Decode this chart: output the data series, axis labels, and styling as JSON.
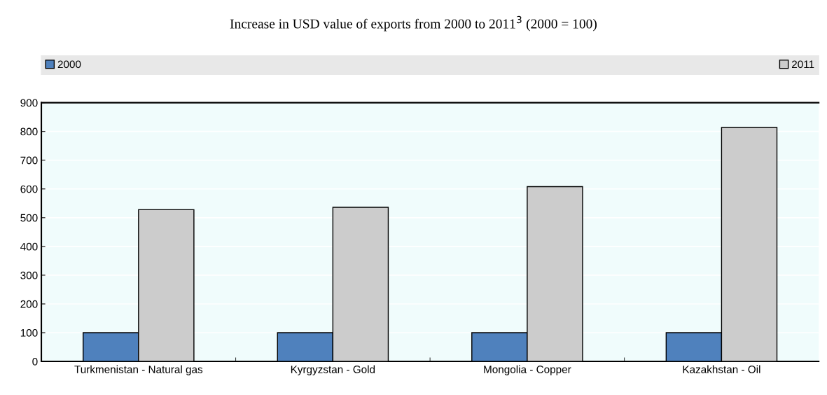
{
  "chart_data": {
    "type": "bar",
    "title": "Increase in USD value of exports from 2000 to 2011$^{3}$ (2000 = 100)",
    "categories": [
      "Turkmenistan - Natural gas",
      "Kyrgyzstan - Gold",
      "Mongolia - Copper",
      "Kazakhstan - Oil"
    ],
    "series": [
      {
        "name": "2000",
        "color": "#4f81bd",
        "values": [
          100,
          100,
          100,
          100
        ]
      },
      {
        "name": "2011",
        "color": "#cccccc",
        "values": [
          528,
          536,
          608,
          814
        ]
      }
    ],
    "ylim": [
      0,
      900
    ],
    "yticks": [
      0,
      100,
      200,
      300,
      400,
      500,
      600,
      700,
      800,
      900
    ],
    "grid": "y",
    "legend": "top"
  }
}
